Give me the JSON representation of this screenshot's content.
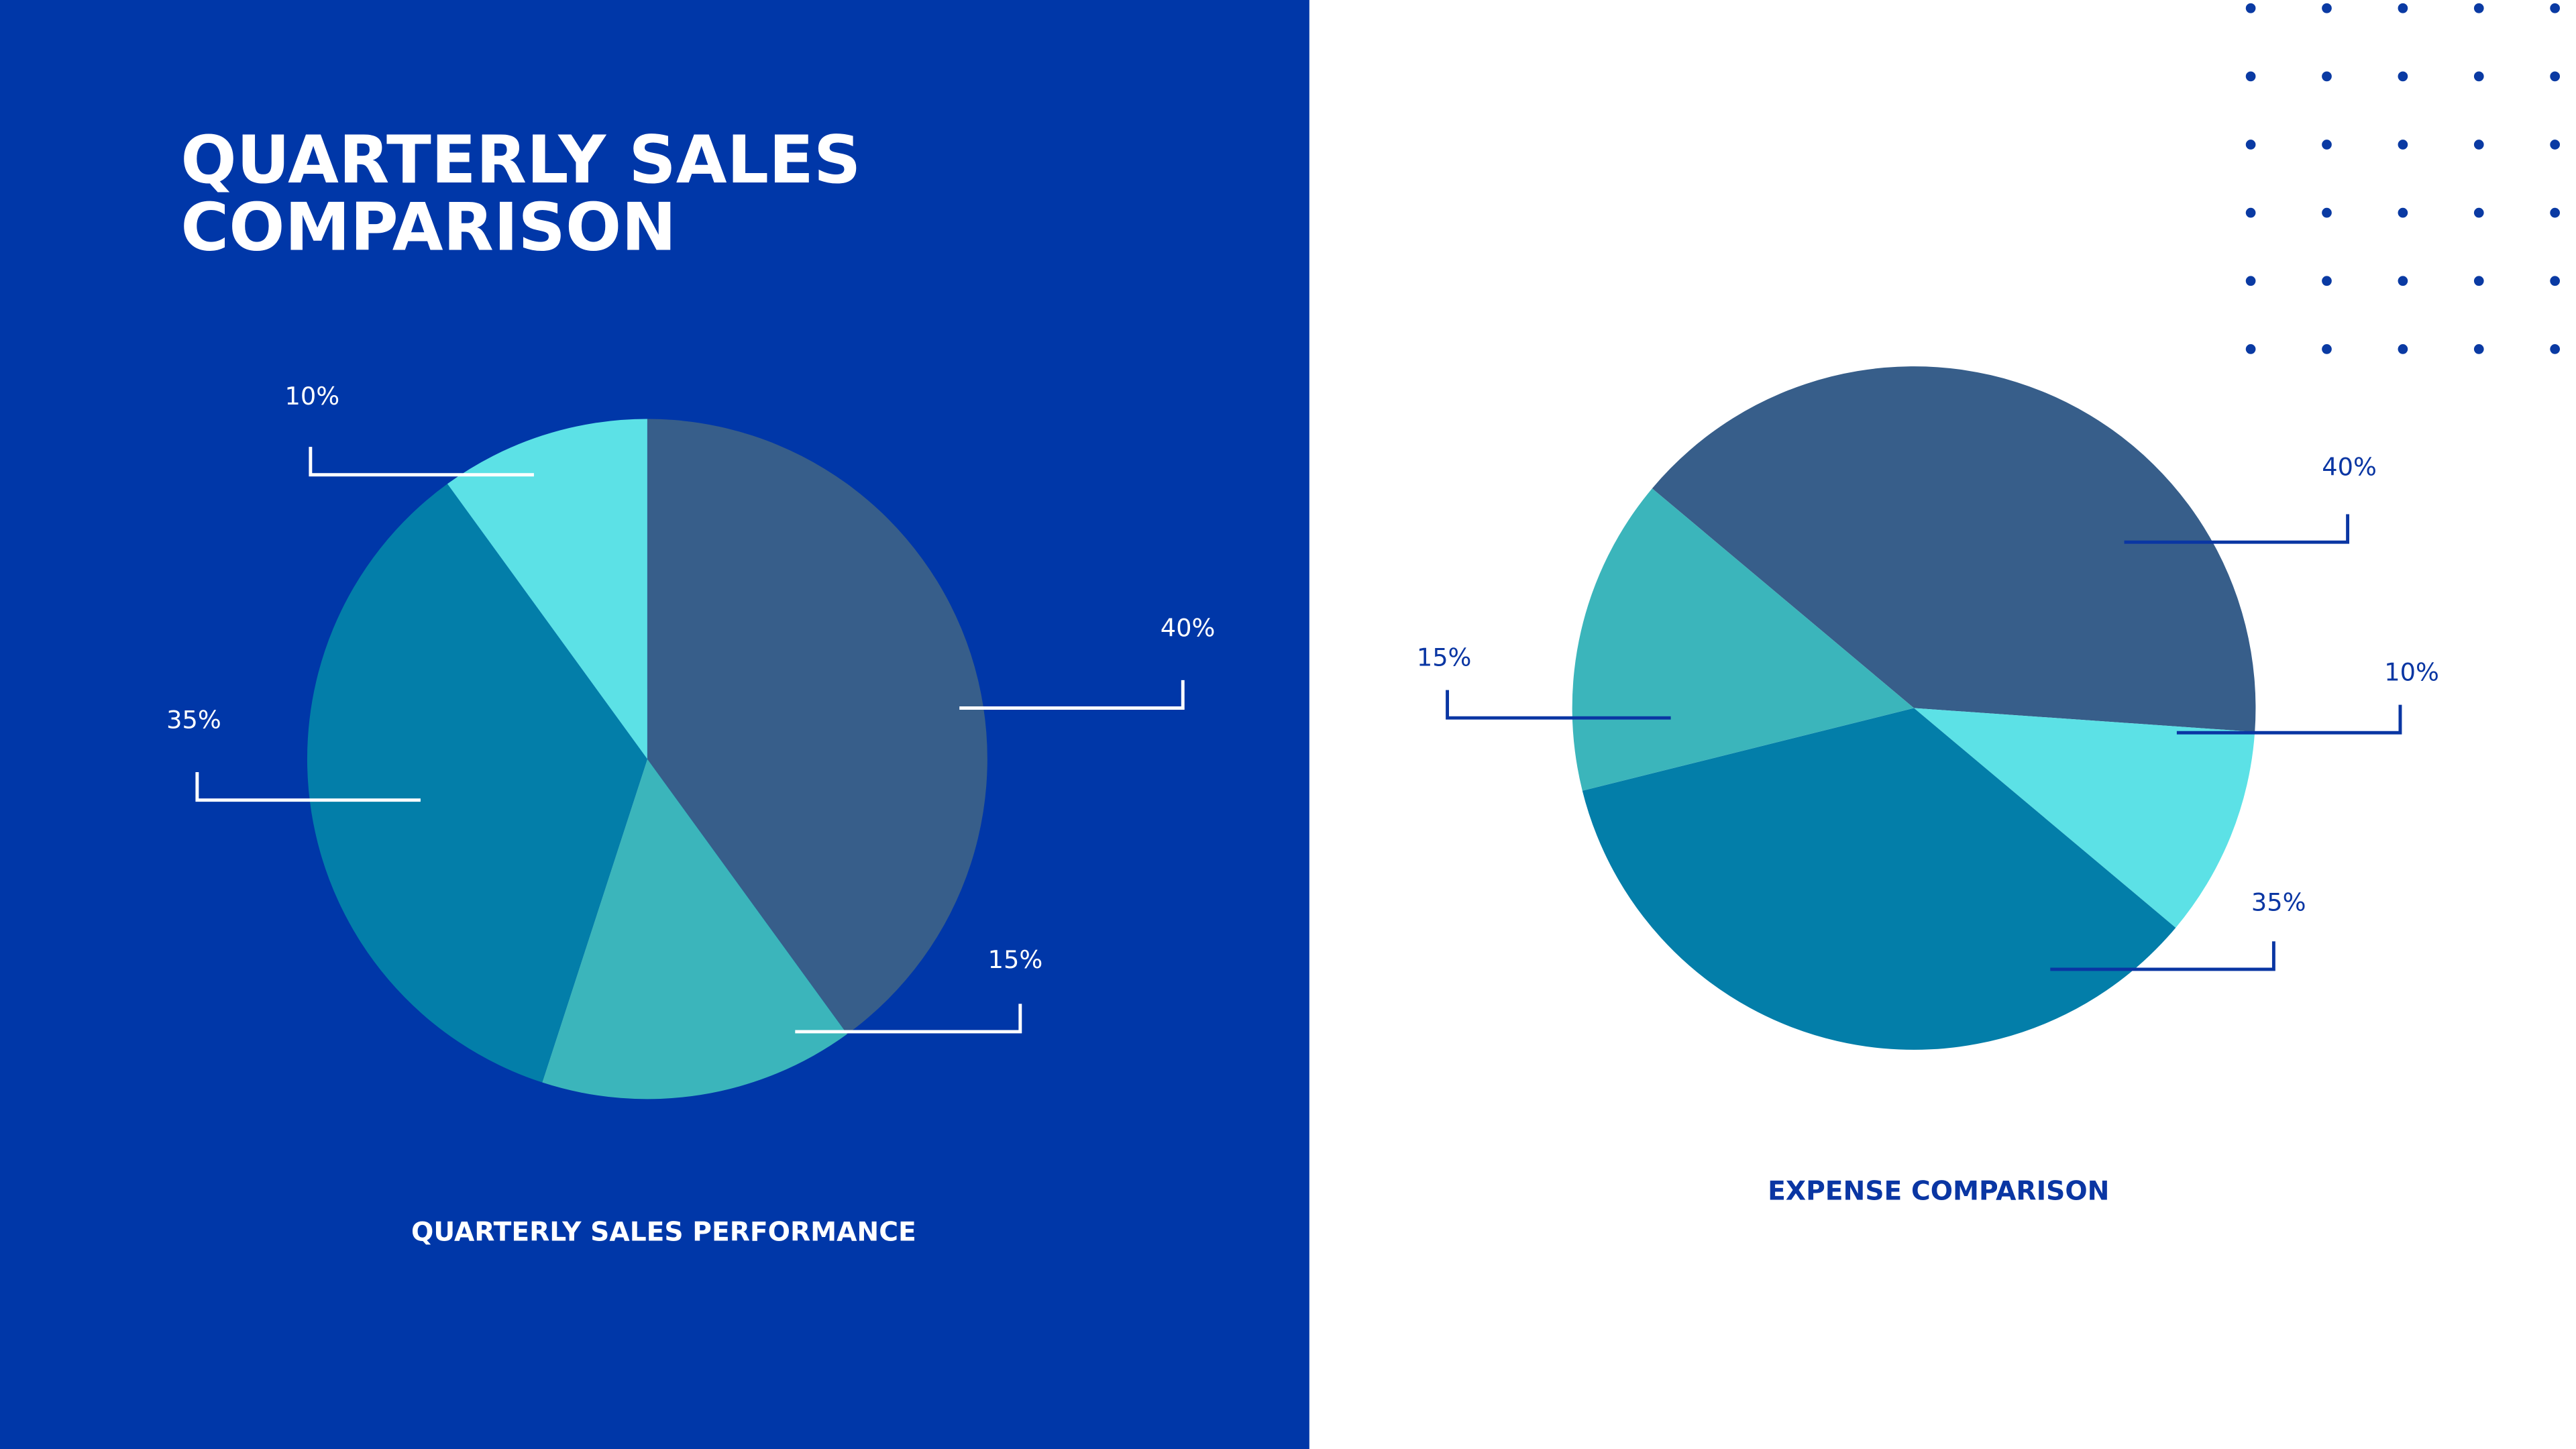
{
  "title": "QUARTERLY SALES COMPARISON",
  "chart_data": [
    {
      "type": "pie",
      "title": "QUARTERLY SALES PERFORMANCE",
      "values": [
        40,
        15,
        35,
        10
      ],
      "value_labels": [
        "40%",
        "15%",
        "35%",
        "10%"
      ],
      "colors": [
        "#375e8a",
        "#3bb5bb",
        "#037ea9",
        "#5ce1e6"
      ]
    },
    {
      "type": "pie",
      "title": "EXPENSE COMPARISON",
      "values": [
        40,
        10,
        35,
        15
      ],
      "value_labels": [
        "40%",
        "10%",
        "35%",
        "15%"
      ],
      "colors": [
        "#375e8a",
        "#5ce1e6",
        "#037ea9",
        "#3bb5bb"
      ]
    }
  ]
}
